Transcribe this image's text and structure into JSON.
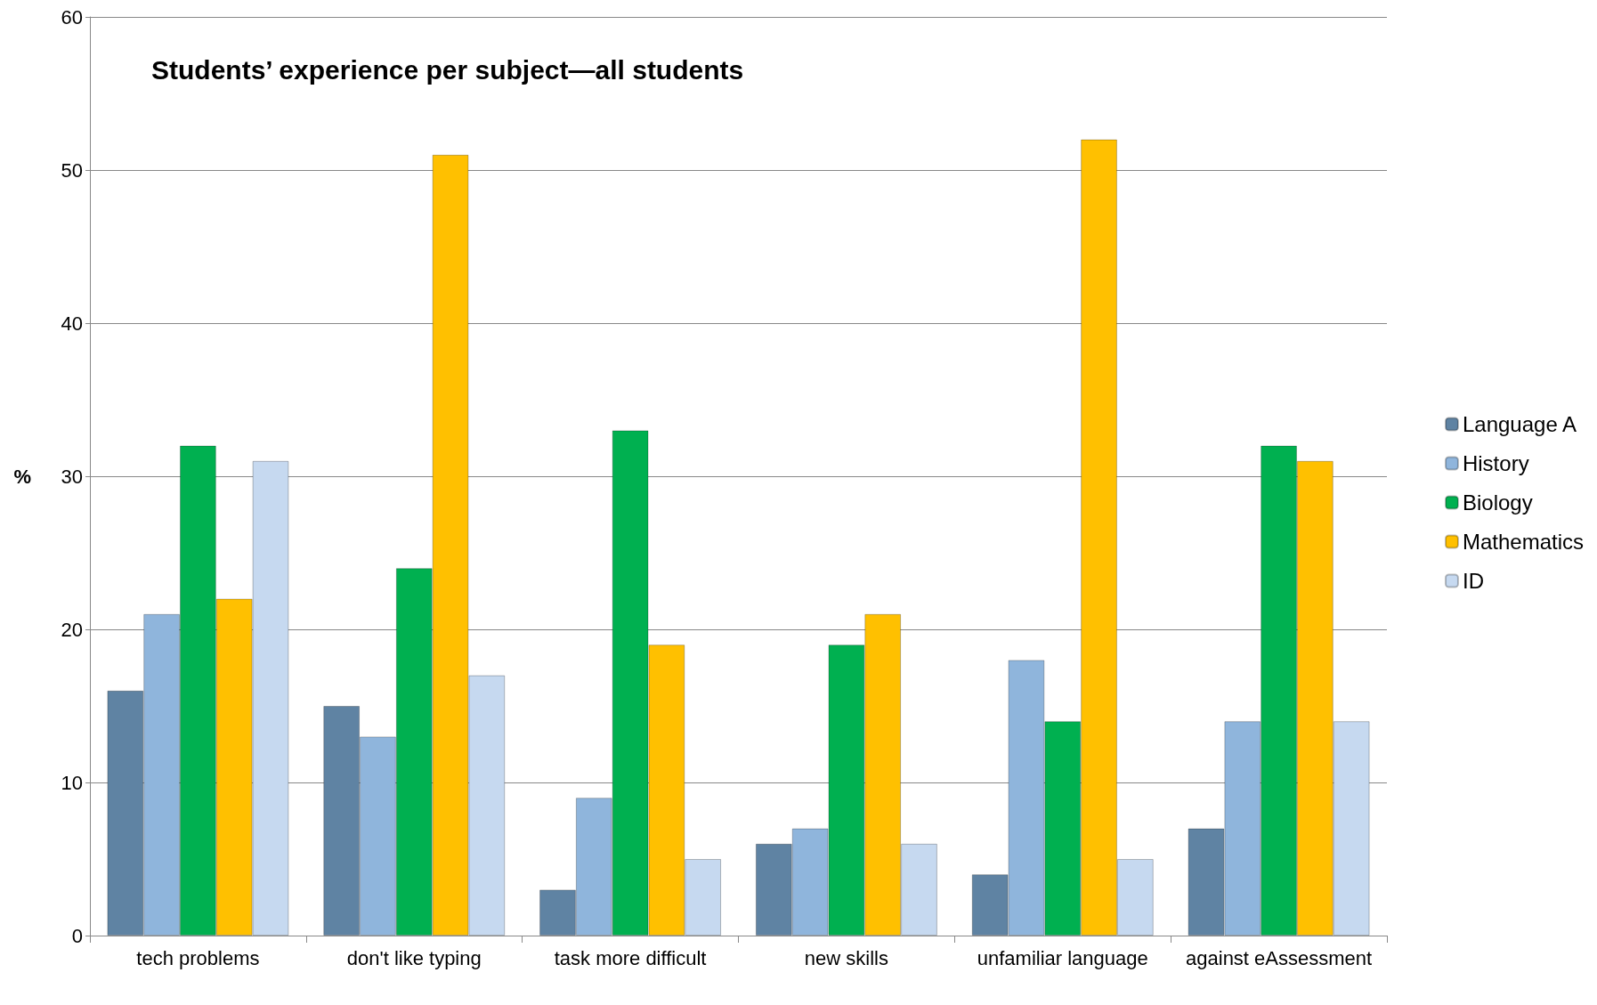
{
  "chart_data": {
    "type": "bar",
    "title": "Students’ experience per subject—all students",
    "ylabel": "%",
    "categories": [
      "tech problems",
      "don't like typing",
      "task more difficult",
      "new skills",
      "unfamiliar language",
      "against eAssessment"
    ],
    "series": [
      {
        "name": "Language A",
        "color": "#5f83a3",
        "values": [
          16,
          15,
          3,
          6,
          4,
          7
        ]
      },
      {
        "name": "History",
        "color": "#8fb5dc",
        "values": [
          21,
          13,
          9,
          7,
          18,
          14
        ]
      },
      {
        "name": "Biology",
        "color": "#00b050",
        "values": [
          32,
          24,
          33,
          19,
          14,
          32
        ]
      },
      {
        "name": "Mathematics",
        "color": "#ffc000",
        "values": [
          22,
          51,
          19,
          21,
          52,
          31
        ]
      },
      {
        "name": "ID",
        "color": "#c6d9f0",
        "values": [
          31,
          17,
          5,
          6,
          5,
          14
        ]
      }
    ],
    "ylim": [
      0,
      60
    ],
    "yticks": [
      0,
      10,
      20,
      30,
      40,
      50,
      60
    ],
    "grid": "y",
    "legend": "right"
  }
}
